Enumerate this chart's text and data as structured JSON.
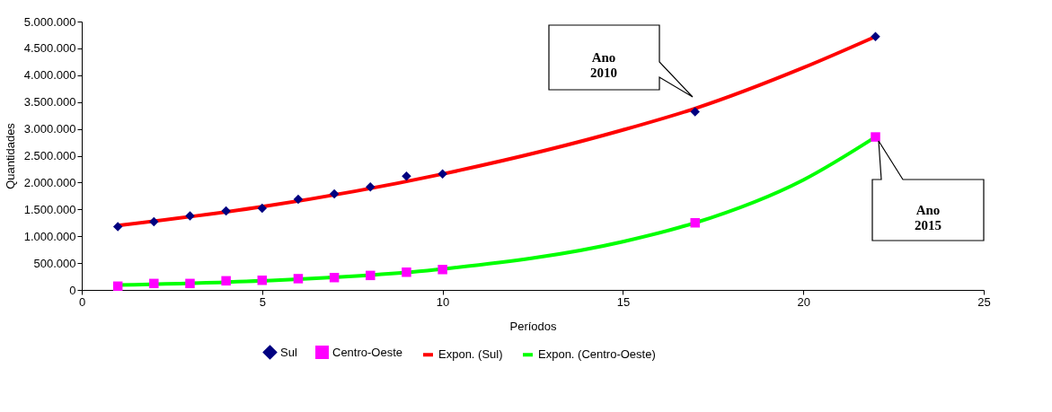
{
  "chart_data": {
    "type": "scatter",
    "xlabel": "Períodos",
    "ylabel": "Quantidades",
    "xlim": [
      0,
      25
    ],
    "xticks": [
      0,
      5,
      10,
      15,
      20,
      25
    ],
    "ylim": [
      0,
      5000000
    ],
    "yticks": [
      0,
      {
        "value": 500000,
        "label": "500.000"
      },
      {
        "value": 1000000,
        "label": "1.000.000"
      },
      {
        "value": 1500000,
        "label": "1.500.000"
      },
      {
        "value": 2000000,
        "label": "2.000.000"
      },
      {
        "value": 2500000,
        "label": "2.500.000"
      },
      {
        "value": 3000000,
        "label": "3.000.000"
      },
      {
        "value": 3500000,
        "label": "3.500.000"
      },
      {
        "value": 4000000,
        "label": "4.000.000"
      },
      {
        "value": 4500000,
        "label": "4.500.000"
      },
      {
        "value": 5000000,
        "label": "5.000.000"
      }
    ],
    "grid": false,
    "legend": "bottom",
    "series": [
      {
        "name": "Sul",
        "marker": "diamond",
        "color": "#000080",
        "x": [
          1,
          2,
          3,
          4,
          5,
          6,
          7,
          8,
          9,
          10,
          17,
          22
        ],
        "values": [
          1180000,
          1270000,
          1380000,
          1470000,
          1520000,
          1690000,
          1790000,
          1920000,
          2120000,
          2160000,
          3320000,
          4720000
        ]
      },
      {
        "name": "Centro-Oeste",
        "marker": "square",
        "color": "#ff00ff",
        "x": [
          1,
          2,
          3,
          4,
          5,
          6,
          7,
          8,
          9,
          10,
          17,
          22
        ],
        "values": [
          70000,
          120000,
          120000,
          170000,
          180000,
          210000,
          230000,
          270000,
          330000,
          380000,
          1250000,
          2850000
        ]
      },
      {
        "name": "Expon. (Sul)",
        "type": "line",
        "marker": "none",
        "line_style": "solid",
        "color": "#ff0000",
        "x": [
          1,
          5,
          10,
          15,
          17,
          20,
          22
        ],
        "values": [
          1200000,
          1550000,
          2160000,
          2980000,
          3380000,
          4140000,
          4720000
        ]
      },
      {
        "name": "Expon. (Centro-Oeste)",
        "type": "line",
        "marker": "none",
        "line_style": "solid",
        "color": "#00ff00",
        "x": [
          1,
          5,
          10,
          15,
          17,
          20,
          22
        ],
        "values": [
          90000,
          170000,
          390000,
          900000,
          1250000,
          2050000,
          2850000
        ]
      }
    ],
    "annotations": [
      "Ano\n2010",
      "Ano\n2015"
    ]
  }
}
